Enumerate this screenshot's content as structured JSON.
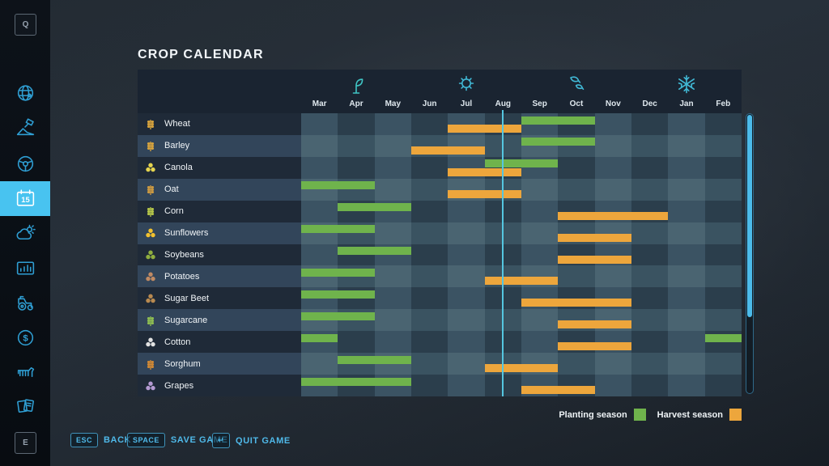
{
  "page": {
    "title": "CROP CALENDAR"
  },
  "colors": {
    "accent_blue": "#4fb9e9",
    "sidebar_icon_blue": "#2f9fd4",
    "sidebar_selected_bg": "#48c3f0",
    "planting_green": "#6fb34c",
    "harvest_orange": "#eda63c",
    "current_day_line": "#55c6e0",
    "header_bg": "#1a2431"
  },
  "sidebar": {
    "top_key_label": "Q",
    "bottom_key_label": "E",
    "items": [
      {
        "id": "map",
        "icon": "map-globe-icon",
        "selected": false
      },
      {
        "id": "contracts",
        "icon": "contracts-icon",
        "selected": false
      },
      {
        "id": "vehicles",
        "icon": "steering-wheel-icon",
        "selected": false
      },
      {
        "id": "calendar",
        "icon": "calendar-icon",
        "selected": true,
        "badge": "15"
      },
      {
        "id": "weather",
        "icon": "weather-icon",
        "selected": false
      },
      {
        "id": "statistics",
        "icon": "statistics-icon",
        "selected": false
      },
      {
        "id": "garage",
        "icon": "tractor-icon",
        "selected": false
      },
      {
        "id": "finances",
        "icon": "finances-icon",
        "selected": false,
        "glyph": "$"
      },
      {
        "id": "animals",
        "icon": "animals-icon",
        "selected": false
      },
      {
        "id": "notes",
        "icon": "notes-icon",
        "selected": false
      }
    ]
  },
  "chart_data": {
    "type": "table",
    "title": "CROP CALENDAR",
    "months": [
      "Mar",
      "Apr",
      "May",
      "Jun",
      "Jul",
      "Aug",
      "Sep",
      "Oct",
      "Nov",
      "Dec",
      "Jan",
      "Feb"
    ],
    "seasons": [
      {
        "id": "spring",
        "icon": "sprout-icon",
        "anchor_month_index": 1.5
      },
      {
        "id": "summer",
        "icon": "sun-icon",
        "anchor_month_index": 4.5
      },
      {
        "id": "autumn",
        "icon": "falling-leaves-icon",
        "anchor_month_index": 7.5
      },
      {
        "id": "winter",
        "icon": "snowflake-icon",
        "anchor_month_index": 10.5
      }
    ],
    "current_day_marker": {
      "month_index": 5,
      "fraction": 0.5
    },
    "crops": [
      {
        "name": "Wheat",
        "icon_shape": "grain",
        "icon_color": "#d8a43e",
        "plant_months": [
          [
            "Sep",
            "Oct"
          ]
        ],
        "harvest_months": [
          [
            "Jul",
            "Aug"
          ]
        ],
        "plant": [
          [
            6,
            7
          ]
        ],
        "harvest": [
          [
            4,
            5
          ]
        ]
      },
      {
        "name": "Barley",
        "icon_shape": "grain",
        "icon_color": "#d8a43e",
        "plant_months": [
          [
            "Sep",
            "Oct"
          ]
        ],
        "harvest_months": [
          [
            "Jun",
            "Jul"
          ]
        ],
        "plant": [
          [
            6,
            7
          ]
        ],
        "harvest": [
          [
            3,
            4
          ]
        ]
      },
      {
        "name": "Canola",
        "icon_shape": "cluster",
        "icon_color": "#e5d44f",
        "plant_months": [
          [
            "Aug",
            "Sep"
          ]
        ],
        "harvest_months": [
          [
            "Jul",
            "Aug"
          ]
        ],
        "plant": [
          [
            5,
            6
          ]
        ],
        "harvest": [
          [
            4,
            5
          ]
        ]
      },
      {
        "name": "Oat",
        "icon_shape": "grain",
        "icon_color": "#cf9c42",
        "plant_months": [
          [
            "Mar",
            "Apr"
          ]
        ],
        "harvest_months": [
          [
            "Jul",
            "Aug"
          ]
        ],
        "plant": [
          [
            0,
            1
          ]
        ],
        "harvest": [
          [
            4,
            5
          ]
        ]
      },
      {
        "name": "Corn",
        "icon_shape": "grain",
        "icon_color": "#b7c84a",
        "plant_months": [
          [
            "Apr",
            "May"
          ]
        ],
        "harvest_months": [
          [
            "Oct",
            "Dec"
          ]
        ],
        "plant": [
          [
            1,
            2
          ]
        ],
        "harvest": [
          [
            7,
            9
          ]
        ]
      },
      {
        "name": "Sunflowers",
        "icon_shape": "cluster",
        "icon_color": "#f2c12e",
        "plant_months": [
          [
            "Mar",
            "Apr"
          ]
        ],
        "harvest_months": [
          [
            "Oct",
            "Nov"
          ]
        ],
        "plant": [
          [
            0,
            1
          ]
        ],
        "harvest": [
          [
            7,
            8
          ]
        ]
      },
      {
        "name": "Soybeans",
        "icon_shape": "cluster",
        "icon_color": "#8fae3f",
        "plant_months": [
          [
            "Apr",
            "May"
          ]
        ],
        "harvest_months": [
          [
            "Oct",
            "Nov"
          ]
        ],
        "plant": [
          [
            1,
            2
          ]
        ],
        "harvest": [
          [
            7,
            8
          ]
        ]
      },
      {
        "name": "Potatoes",
        "icon_shape": "cluster",
        "icon_color": "#c08a63",
        "plant_months": [
          [
            "Mar",
            "Apr"
          ]
        ],
        "harvest_months": [
          [
            "Aug",
            "Sep"
          ]
        ],
        "plant": [
          [
            0,
            1
          ]
        ],
        "harvest": [
          [
            5,
            6
          ]
        ]
      },
      {
        "name": "Sugar Beet",
        "icon_shape": "cluster",
        "icon_color": "#b98a50",
        "plant_months": [
          [
            "Mar",
            "Apr"
          ]
        ],
        "harvest_months": [
          [
            "Sep",
            "Nov"
          ]
        ],
        "plant": [
          [
            0,
            1
          ]
        ],
        "harvest": [
          [
            6,
            8
          ]
        ]
      },
      {
        "name": "Sugarcane",
        "icon_shape": "grain",
        "icon_color": "#8fbf52",
        "plant_months": [
          [
            "Mar",
            "Apr"
          ]
        ],
        "harvest_months": [
          [
            "Oct",
            "Nov"
          ]
        ],
        "plant": [
          [
            0,
            1
          ]
        ],
        "harvest": [
          [
            7,
            8
          ]
        ]
      },
      {
        "name": "Cotton",
        "icon_shape": "cluster",
        "icon_color": "#e2e2e2",
        "plant_months": [
          [
            "Mar",
            "Mar"
          ],
          [
            "Feb",
            "Feb"
          ]
        ],
        "harvest_months": [
          [
            "Oct",
            "Nov"
          ]
        ],
        "plant": [
          [
            0,
            0
          ],
          [
            11,
            11
          ]
        ],
        "harvest": [
          [
            7,
            8
          ]
        ]
      },
      {
        "name": "Sorghum",
        "icon_shape": "grain",
        "icon_color": "#d28a35",
        "plant_months": [
          [
            "Apr",
            "May"
          ]
        ],
        "harvest_months": [
          [
            "Aug",
            "Sep"
          ]
        ],
        "plant": [
          [
            1,
            2
          ]
        ],
        "harvest": [
          [
            5,
            6
          ]
        ]
      },
      {
        "name": "Grapes",
        "icon_shape": "cluster",
        "icon_color": "#b49ad2",
        "plant_months": [
          [
            "Mar",
            "May"
          ]
        ],
        "harvest_months": [
          [
            "Sep",
            "Oct"
          ]
        ],
        "plant": [
          [
            0,
            2
          ]
        ],
        "harvest": [
          [
            6,
            7
          ]
        ]
      }
    ],
    "legend": [
      {
        "label": "Planting season",
        "color": "#6fb34c"
      },
      {
        "label": "Harvest season",
        "color": "#eda63c"
      }
    ]
  },
  "footer": {
    "buttons": [
      {
        "key": "ESC",
        "label": "BACK"
      },
      {
        "key": "SPACE",
        "label": "SAVE GAME"
      },
      {
        "key": "↵",
        "label": "QUIT GAME"
      }
    ]
  }
}
